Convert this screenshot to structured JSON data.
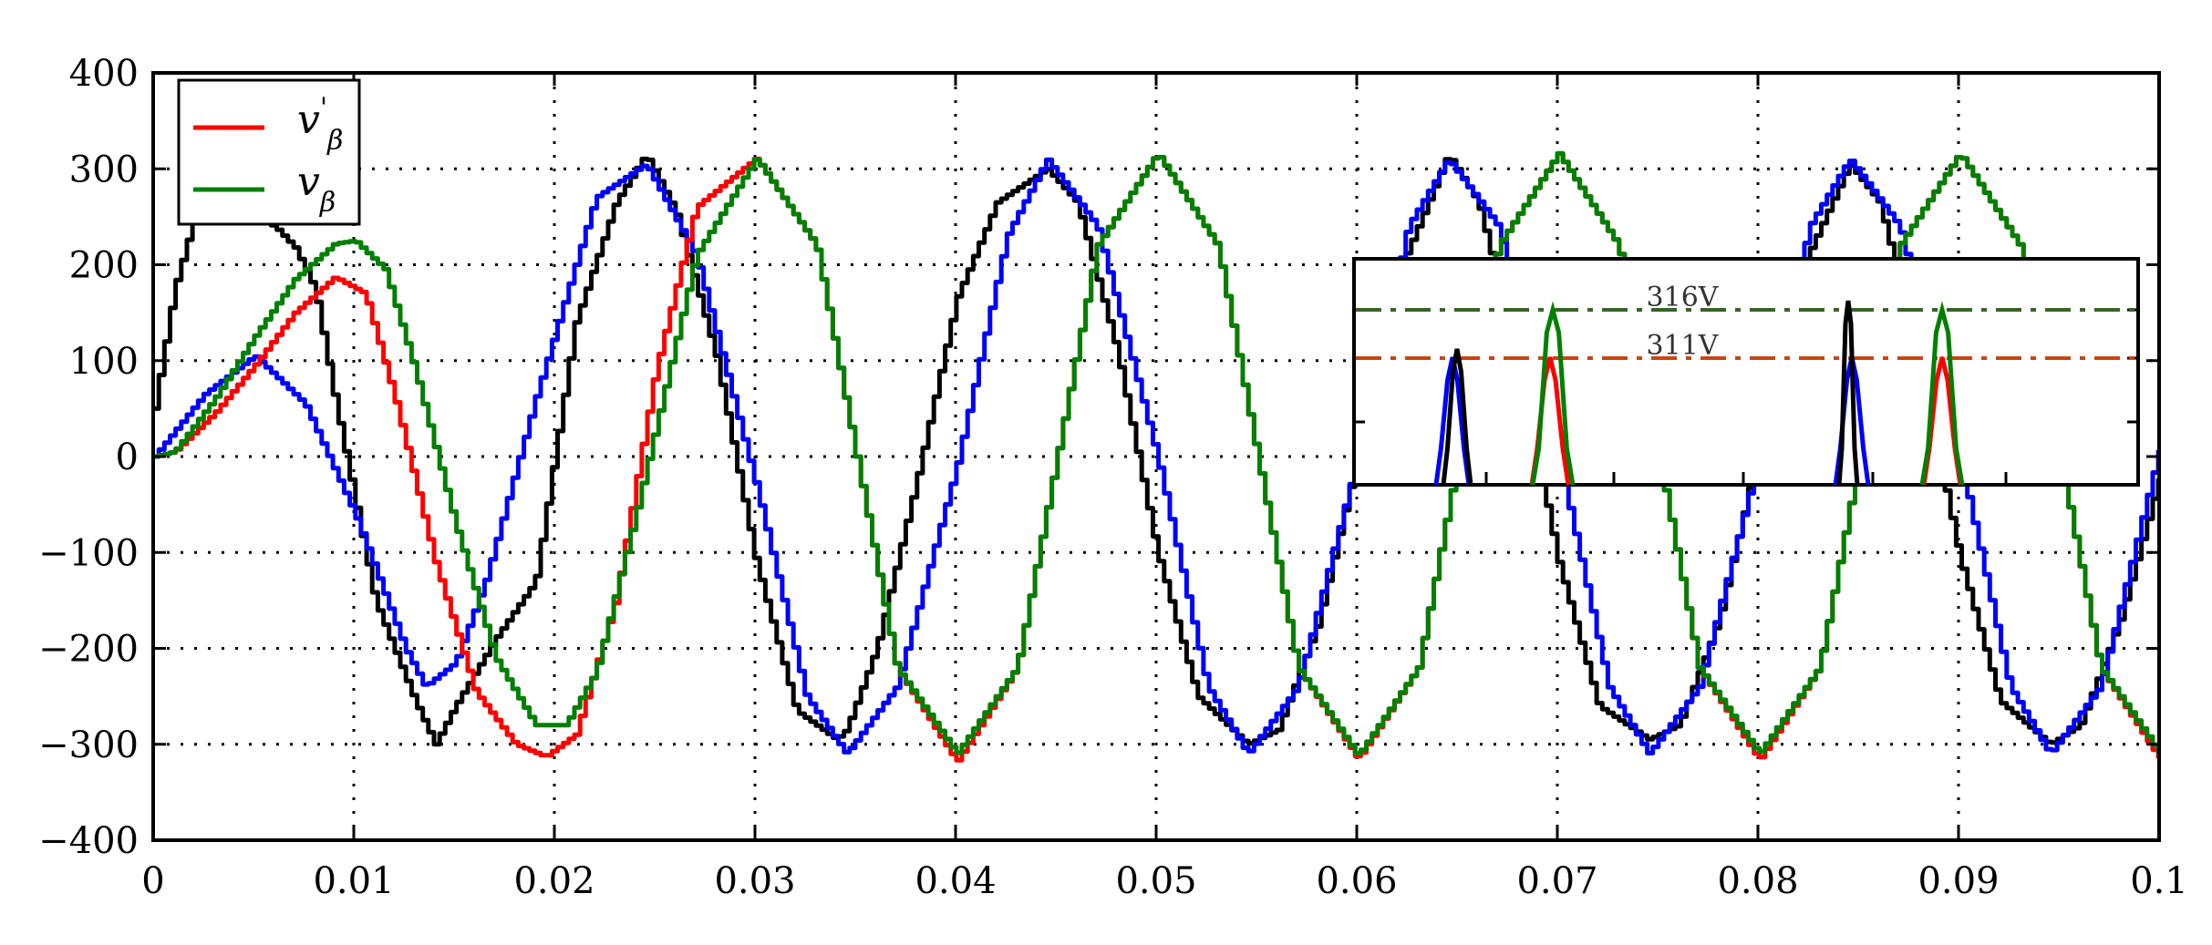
{
  "chart_data": {
    "type": "line",
    "title": "",
    "xlabel": "",
    "ylabel": "",
    "xlim": [
      0,
      0.1
    ],
    "ylim": [
      -400,
      400
    ],
    "grid": true,
    "legend_position": "top-left",
    "x_ticks": [
      {
        "value": 0,
        "label": "0"
      },
      {
        "value": 0.01,
        "label": "0.01"
      },
      {
        "value": 0.02,
        "label": "0.02"
      },
      {
        "value": 0.03,
        "label": "0.03"
      },
      {
        "value": 0.04,
        "label": "0.04"
      },
      {
        "value": 0.05,
        "label": "0.05"
      },
      {
        "value": 0.06,
        "label": "0.06"
      },
      {
        "value": 0.07,
        "label": "0.07"
      },
      {
        "value": 0.08,
        "label": "0.08"
      },
      {
        "value": 0.09,
        "label": "0.09"
      },
      {
        "value": 0.1,
        "label": "0.1"
      }
    ],
    "y_ticks": [
      {
        "value": 400,
        "label": "400"
      },
      {
        "value": 300,
        "label": "300"
      },
      {
        "value": 200,
        "label": "200"
      },
      {
        "value": 100,
        "label": "100"
      },
      {
        "value": 0,
        "label": "0"
      },
      {
        "value": -100,
        "label": "−100"
      },
      {
        "value": -200,
        "label": "−200"
      },
      {
        "value": -300,
        "label": "−300"
      },
      {
        "value": -400,
        "label": "−400"
      }
    ],
    "legend": [
      {
        "base": "v",
        "prime": "'",
        "sub": "β",
        "color": "#ff0000"
      },
      {
        "base": "v",
        "prime": "",
        "sub": "β",
        "color": "#008000"
      }
    ],
    "series": [
      {
        "color": "#000000",
        "in_legend": false,
        "x": [
          0,
          0.001,
          0.002,
          0.004,
          0.006,
          0.007,
          0.008,
          0.009,
          0.011,
          0.013,
          0.014,
          0.015,
          0.017,
          0.019,
          0.021,
          0.023,
          0.0245,
          0.026,
          0.028,
          0.03,
          0.032,
          0.034,
          0.0345,
          0.036,
          0.038,
          0.04,
          0.042,
          0.0445,
          0.046,
          0.048,
          0.05,
          0.052,
          0.0545,
          0.056,
          0.058,
          0.06,
          0.062,
          0.0645,
          0.066,
          0.068,
          0.07,
          0.072,
          0.0745,
          0.076,
          0.078,
          0.08,
          0.082,
          0.0845,
          0.086,
          0.088,
          0.09,
          0.092,
          0.0945,
          0.096,
          0.098,
          0.1
        ],
        "y": [
          50,
          175,
          250,
          258,
          240,
          218,
          175,
          60,
          -150,
          -255,
          -300,
          -260,
          -190,
          -130,
          140,
          265,
          315,
          255,
          105,
          -110,
          -265,
          -295,
          -285,
          -200,
          -25,
          165,
          265,
          300,
          265,
          110,
          -100,
          -250,
          -300,
          -285,
          -175,
          0,
          190,
          315,
          265,
          100,
          -110,
          -260,
          -295,
          -280,
          -170,
          10,
          190,
          305,
          265,
          100,
          -105,
          -255,
          -300,
          -280,
          -170,
          -20
        ]
      },
      {
        "color": "#0000ff",
        "in_legend": false,
        "x": [
          0,
          0.0025,
          0.005,
          0.0075,
          0.01,
          0.0125,
          0.0135,
          0.015,
          0.0165,
          0.019,
          0.022,
          0.0245,
          0.027,
          0.03,
          0.0325,
          0.0345,
          0.037,
          0.04,
          0.0425,
          0.0445,
          0.047,
          0.05,
          0.0525,
          0.0545,
          0.057,
          0.06,
          0.0625,
          0.0645,
          0.067,
          0.07,
          0.0725,
          0.0745,
          0.077,
          0.08,
          0.0825,
          0.0845,
          0.087,
          0.09,
          0.0925,
          0.0945,
          0.097,
          0.1
        ],
        "y": [
          0,
          65,
          105,
          55,
          -60,
          -200,
          -240,
          -215,
          -130,
          60,
          270,
          305,
          210,
          -30,
          -250,
          -310,
          -240,
          -10,
          230,
          310,
          240,
          0,
          -240,
          -310,
          -240,
          0,
          240,
          310,
          240,
          0,
          -240,
          -310,
          -240,
          0,
          240,
          310,
          240,
          0,
          -240,
          -310,
          -240,
          10
        ]
      },
      {
        "color": "#ff0000",
        "in_legend": true,
        "name_ref": 0,
        "x": [
          0,
          0.001,
          0.003,
          0.005,
          0.007,
          0.009,
          0.0105,
          0.012,
          0.014,
          0.016,
          0.018,
          0.0195,
          0.021,
          0.023,
          0.025,
          0.027,
          0.03,
          0.033,
          0.035,
          0.037,
          0.04,
          0.043,
          0.045,
          0.047,
          0.05,
          0.053,
          0.055,
          0.057,
          0.06,
          0.063,
          0.065,
          0.067,
          0.07,
          0.073,
          0.075,
          0.077,
          0.08,
          0.083,
          0.085,
          0.087,
          0.09,
          0.093,
          0.095,
          0.097,
          0.1
        ],
        "y": [
          0,
          5,
          45,
          95,
          150,
          187,
          170,
          60,
          -110,
          -245,
          -300,
          -313,
          -290,
          -150,
          90,
          260,
          311,
          220,
          0,
          -220,
          -318,
          -220,
          0,
          220,
          316,
          220,
          0,
          -220,
          -315,
          -220,
          0,
          220,
          316,
          220,
          0,
          -220,
          -316,
          -220,
          0,
          220,
          316,
          220,
          0,
          -220,
          -316
        ]
      },
      {
        "color": "#008000",
        "in_legend": true,
        "name_ref": 1,
        "x": [
          0,
          0.001,
          0.003,
          0.005,
          0.007,
          0.009,
          0.01,
          0.0115,
          0.013,
          0.015,
          0.017,
          0.019,
          0.0205,
          0.022,
          0.024,
          0.027,
          0.03,
          0.033,
          0.035,
          0.037,
          0.04,
          0.043,
          0.045,
          0.047,
          0.05,
          0.053,
          0.055,
          0.057,
          0.06,
          0.063,
          0.065,
          0.067,
          0.07,
          0.073,
          0.075,
          0.077,
          0.08,
          0.083,
          0.085,
          0.087,
          0.09,
          0.093,
          0.095,
          0.097,
          0.1
        ],
        "y": [
          0,
          5,
          60,
          125,
          185,
          222,
          225,
          195,
          90,
          -70,
          -210,
          -280,
          -280,
          -225,
          -60,
          210,
          311,
          220,
          0,
          -220,
          -310,
          -220,
          0,
          220,
          316,
          220,
          0,
          -220,
          -312,
          -220,
          0,
          220,
          316,
          220,
          0,
          -220,
          -310,
          -220,
          0,
          220,
          316,
          220,
          0,
          -220,
          -310
        ]
      }
    ],
    "inset": {
      "lines": [
        {
          "label": "316V",
          "color": "#336622"
        },
        {
          "label": "311V",
          "color": "#cc4411"
        }
      ]
    }
  }
}
